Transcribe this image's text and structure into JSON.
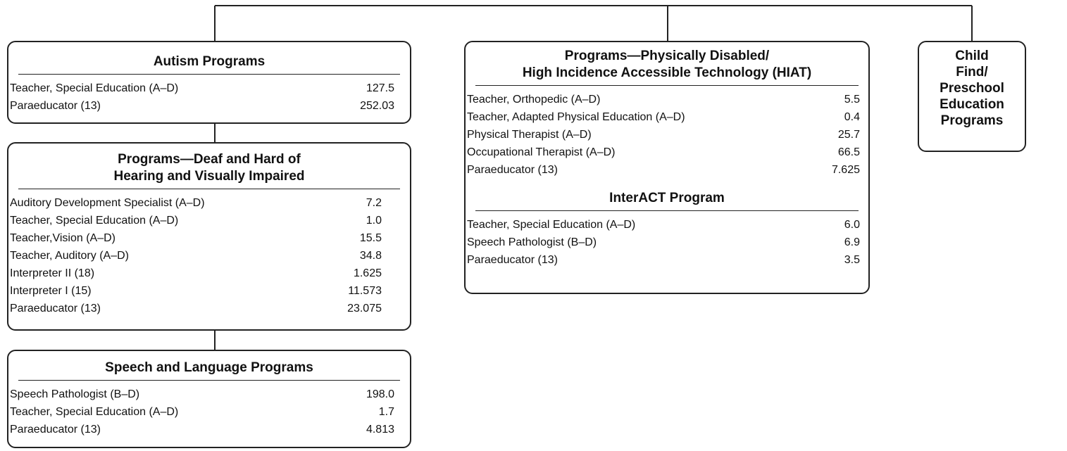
{
  "boxes": [
    {
      "sections": [
        {
          "heading": [
            "Autism Programs"
          ],
          "rows": [
            {
              "label": "Teacher, Special Education (A–D)",
              "value": "127.5"
            },
            {
              "label": "Paraeducator (13)",
              "value": "252.03"
            }
          ]
        }
      ]
    },
    {
      "sections": [
        {
          "heading": [
            "Programs—Deaf and Hard of",
            "Hearing and Visually Impaired"
          ],
          "rows": [
            {
              "label": "Auditory Development Specialist (A–D)",
              "value": "7.2"
            },
            {
              "label": "Teacher, Special Education (A–D)",
              "value": "1.0"
            },
            {
              "label": "Teacher,Vision (A–D)",
              "value": "15.5"
            },
            {
              "label": "Teacher, Auditory (A–D)",
              "value": "34.8"
            },
            {
              "label": "Interpreter II (18)",
              "value": "1.625"
            },
            {
              "label": "Interpreter I (15)",
              "value": "11.573"
            },
            {
              "label": "Paraeducator (13)",
              "value": "23.075"
            }
          ]
        }
      ]
    },
    {
      "sections": [
        {
          "heading": [
            "Speech and Language Programs"
          ],
          "rows": [
            {
              "label": "Speech Pathologist (B–D)",
              "value": "198.0"
            },
            {
              "label": "Teacher, Special Education (A–D)",
              "value": "1.7"
            },
            {
              "label": "Paraeducator (13)",
              "value": "4.813"
            }
          ]
        }
      ]
    },
    {
      "sections": [
        {
          "heading": [
            "Programs—Physically Disabled/",
            "High Incidence Accessible Technology (HIAT)"
          ],
          "rows": [
            {
              "label": "Teacher, Orthopedic (A–D)",
              "value": "5.5"
            },
            {
              "label": "Teacher, Adapted Physical Education (A–D)",
              "value": "0.4"
            },
            {
              "label": "Physical Therapist (A–D)",
              "value": "25.7"
            },
            {
              "label": "Occupational Therapist (A–D)",
              "value": "66.5"
            },
            {
              "label": "Paraeducator (13)",
              "value": "7.625"
            }
          ]
        },
        {
          "heading": [
            "InterACT Program"
          ],
          "rows": [
            {
              "label": "Teacher, Special Education (A–D)",
              "value": "6.0"
            },
            {
              "label": "Speech Pathologist (B–D)",
              "value": "6.9"
            },
            {
              "label": "Paraeducator (13)",
              "value": "3.5"
            }
          ]
        }
      ]
    },
    {
      "sections": [
        {
          "heading": [
            "Child",
            "Find/",
            "Preschool",
            "Education",
            "Programs"
          ],
          "rows": []
        }
      ]
    }
  ]
}
